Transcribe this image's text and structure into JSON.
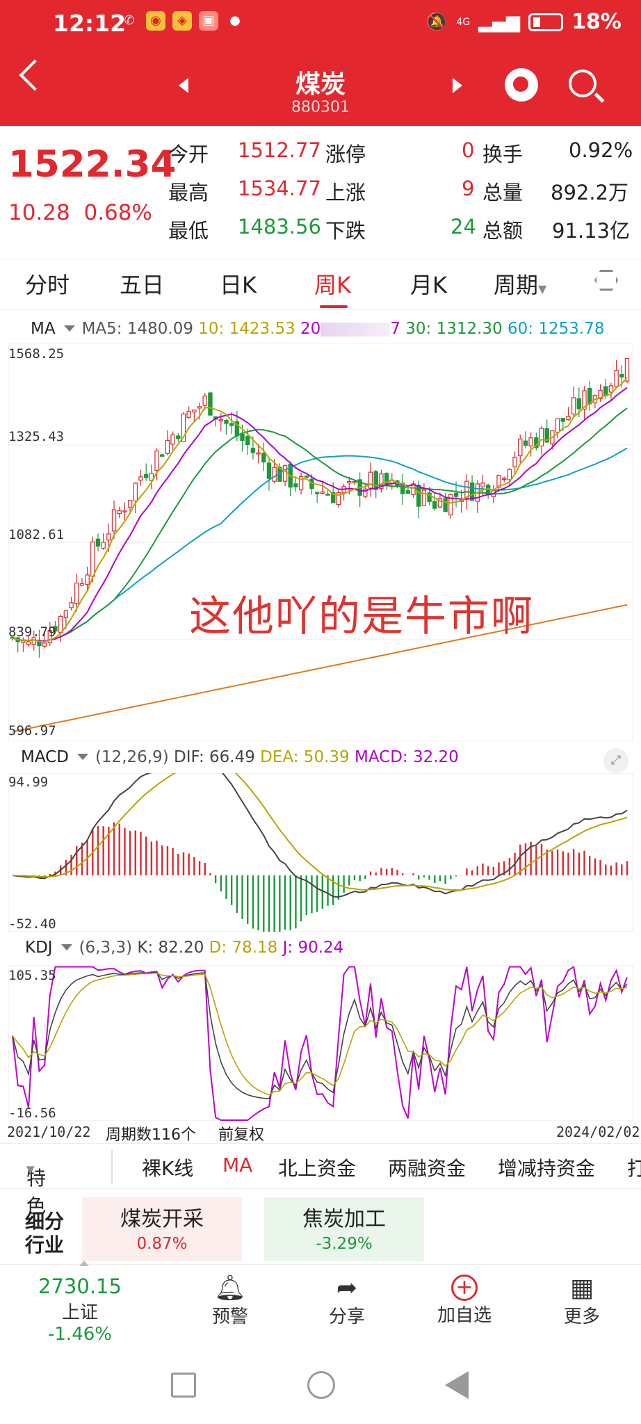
{
  "status_bar": {
    "time": "12:12",
    "signal": "4G",
    "battery": "18%"
  },
  "header": {
    "title": "煤炭",
    "code": "880301"
  },
  "quote": {
    "price": "1522.34",
    "change": "10.28",
    "change_pct": "0.68%",
    "rows": [
      {
        "l1": "今开",
        "v1": "1512.77",
        "l2": "涨停",
        "v2": "0",
        "l3": "换手",
        "v3": "0.92%"
      },
      {
        "l1": "最高",
        "v1": "1534.77",
        "l2": "上涨",
        "v2": "9",
        "l3": "总量",
        "v3": "892.2万"
      },
      {
        "l1": "最低",
        "v1": "1483.56",
        "l2": "下跌",
        "v2": "24",
        "l3": "总额",
        "v3": "91.13亿"
      }
    ]
  },
  "tabs": [
    "分时",
    "五日",
    "日K",
    "周K",
    "月K",
    "周期"
  ],
  "ma": {
    "label": "MA",
    "ma5": "MA5: 1480.09",
    "ma10": "10: 1423.53",
    "ma20": "20",
    "ma20_tail": "7",
    "ma30": "30: 1312.30",
    "ma60": "60: 1253.78"
  },
  "main_axis": {
    "top": "1568.25",
    "t2": "1325.43",
    "t3": "1082.61",
    "t4": "839.79",
    "bottom": "596.97"
  },
  "watermark": "这他吖的是牛市啊",
  "macd": {
    "label": "MACD",
    "params": "(12,26,9)",
    "dif": "DIF: 66.49",
    "dea": "DEA: 50.39",
    "macd": "MACD: 32.20",
    "top": "94.99",
    "bottom": "-52.40"
  },
  "kdj": {
    "label": "KDJ",
    "params": "(6,3,3)",
    "k": "K: 82.20",
    "d": "D: 78.18",
    "j": "J: 90.24",
    "top": "105.35",
    "bottom": "-16.56"
  },
  "footer_axis": {
    "start": "2021/10/22",
    "count": "周期数116个",
    "adj": "前复权",
    "end": "2024/02/02"
  },
  "subtabs": [
    "特色",
    "裸K线",
    "MA",
    "北上资金",
    "两融资金",
    "增减持资金",
    "打"
  ],
  "industry": {
    "label1": "细分",
    "label2": "行业",
    "cards": [
      {
        "name": "煤炭开采",
        "pct": "0.87%"
      },
      {
        "name": "焦炭加工",
        "pct": "-3.29%"
      }
    ]
  },
  "bottom": {
    "index_value": "2730.15",
    "index_name": "上证",
    "index_pct": "-1.46%",
    "items": [
      "预警",
      "分享",
      "加自选",
      "更多"
    ]
  },
  "colors": {
    "accent": "#e3272e",
    "up": "#e3272e",
    "down": "#1a9a3a"
  },
  "chart_data": [
    {
      "type": "candlestick",
      "title": "周K",
      "x_range": [
        "2021/10/22",
        "2024/02/02"
      ],
      "ylim": [
        596.97,
        1568.25
      ],
      "periods": 116,
      "series": [
        {
          "name": "MA5",
          "last": 1480.09
        },
        {
          "name": "MA10",
          "last": 1423.53
        },
        {
          "name": "MA30",
          "last": 1312.3
        },
        {
          "name": "MA60",
          "last": 1253.78
        }
      ],
      "close_path": [
        850,
        830,
        860,
        900,
        980,
        1060,
        1120,
        1180,
        1250,
        1300,
        1350,
        1400,
        1430,
        1380,
        1340,
        1300,
        1260,
        1240,
        1220,
        1210,
        1200,
        1210,
        1230,
        1220,
        1210,
        1200,
        1180,
        1190,
        1210,
        1220,
        1240,
        1300,
        1330,
        1350,
        1380,
        1420,
        1450,
        1480,
        1522.34
      ]
    },
    {
      "type": "line",
      "title": "MACD",
      "ylim": [
        -52.4,
        94.99
      ],
      "series": [
        {
          "name": "DIF",
          "last": 66.49
        },
        {
          "name": "DEA",
          "last": 50.39
        },
        {
          "name": "MACD",
          "last": 32.2
        }
      ]
    },
    {
      "type": "line",
      "title": "KDJ",
      "ylim": [
        -16.56,
        105.35
      ],
      "series": [
        {
          "name": "K",
          "last": 82.2
        },
        {
          "name": "D",
          "last": 78.18
        },
        {
          "name": "J",
          "last": 90.24
        }
      ]
    }
  ]
}
